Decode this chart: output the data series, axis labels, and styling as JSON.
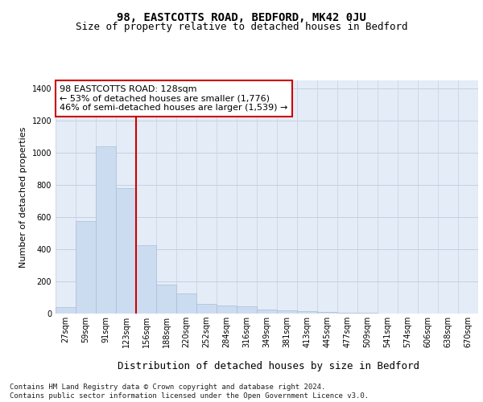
{
  "title": "98, EASTCOTTS ROAD, BEDFORD, MK42 0JU",
  "subtitle": "Size of property relative to detached houses in Bedford",
  "xlabel": "Distribution of detached houses by size in Bedford",
  "ylabel": "Number of detached properties",
  "bar_labels": [
    "27sqm",
    "59sqm",
    "91sqm",
    "123sqm",
    "156sqm",
    "188sqm",
    "220sqm",
    "252sqm",
    "284sqm",
    "316sqm",
    "349sqm",
    "381sqm",
    "413sqm",
    "445sqm",
    "477sqm",
    "509sqm",
    "541sqm",
    "574sqm",
    "606sqm",
    "638sqm",
    "670sqm"
  ],
  "bar_values": [
    40,
    575,
    1040,
    780,
    425,
    180,
    125,
    60,
    50,
    45,
    25,
    20,
    15,
    10,
    5,
    3,
    2,
    1,
    0,
    0,
    0
  ],
  "bar_color": "#ccdcf0",
  "bar_edgecolor": "#aabdd8",
  "grid_color": "#c8d0e0",
  "background_color": "#e4ecf7",
  "ylim": [
    0,
    1450
  ],
  "yticks": [
    0,
    200,
    400,
    600,
    800,
    1000,
    1200,
    1400
  ],
  "vline_x": 3.5,
  "vline_color": "#cc0000",
  "annotation_text": "98 EASTCOTTS ROAD: 128sqm\n← 53% of detached houses are smaller (1,776)\n46% of semi-detached houses are larger (1,539) →",
  "annotation_box_color": "#ffffff",
  "annotation_box_edgecolor": "#cc0000",
  "footer_text": "Contains HM Land Registry data © Crown copyright and database right 2024.\nContains public sector information licensed under the Open Government Licence v3.0.",
  "title_fontsize": 10,
  "subtitle_fontsize": 9,
  "xlabel_fontsize": 9,
  "ylabel_fontsize": 8,
  "tick_fontsize": 7,
  "annotation_fontsize": 8,
  "footer_fontsize": 6.5
}
